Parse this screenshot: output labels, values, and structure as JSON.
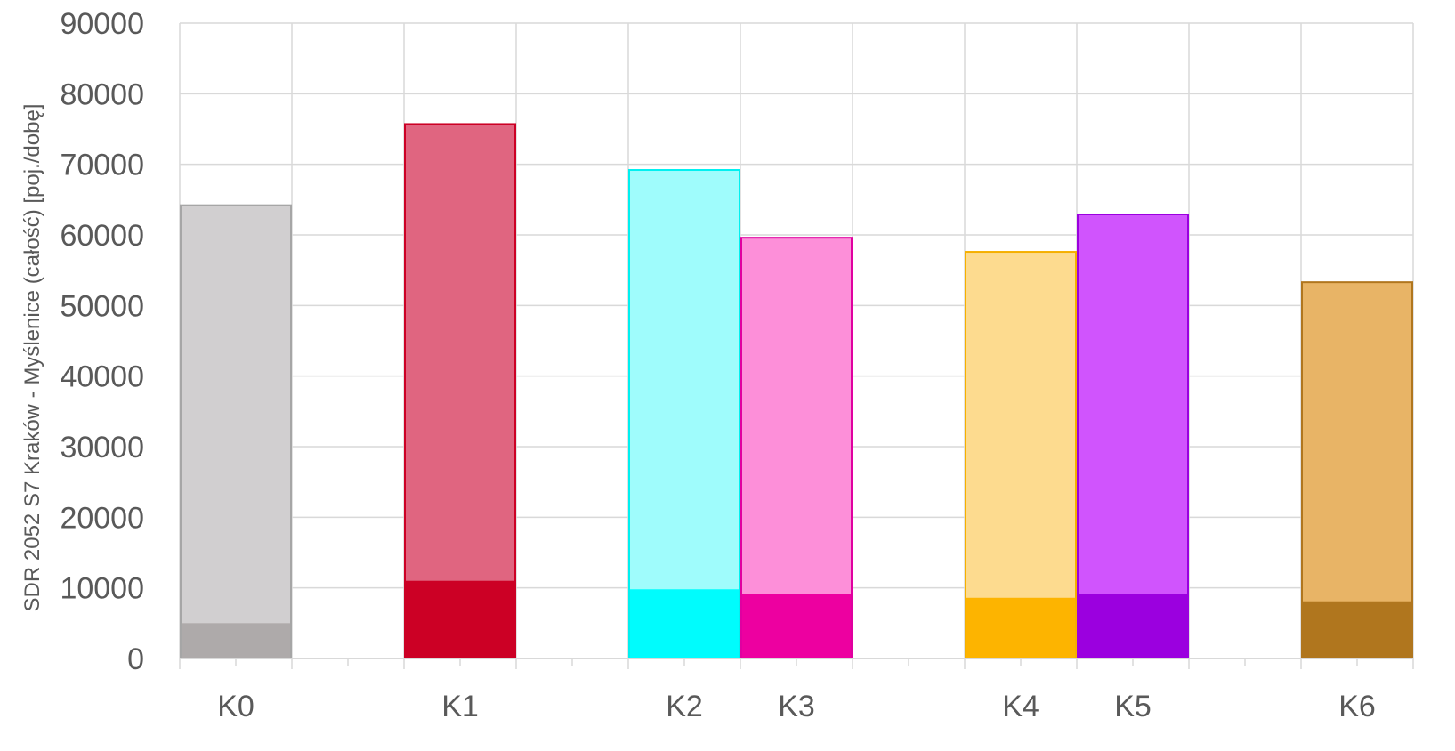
{
  "chart_data": {
    "type": "bar",
    "title": "",
    "xlabel": "",
    "ylabel": "SDR 2052 S7 Kraków - Myślenice (całość) [poj./dobę]",
    "ylim": [
      0,
      90000
    ],
    "yticks": [
      0,
      10000,
      20000,
      30000,
      40000,
      50000,
      60000,
      70000,
      80000,
      90000
    ],
    "grid": true,
    "legend": "none",
    "categories": [
      "K0",
      "K1",
      "K2",
      "K3",
      "K4",
      "K5",
      "K6"
    ],
    "series": [
      {
        "values": [
          5000,
          11000,
          9800,
          9200,
          8600,
          9200,
          8100
        ]
      },
      {
        "values": [
          64200,
          75700,
          69200,
          59600,
          57600,
          62900,
          53300
        ]
      }
    ],
    "colors": {
      "fill_light": [
        "#d1cfd0",
        "#e06580",
        "#9ffcfc",
        "#fd8fd9",
        "#fddb8f",
        "#d054fd",
        "#e8b466"
      ],
      "fill_dark": [
        "#aeaaaa",
        "#cc0025",
        "#00fcfd",
        "#ed00a0",
        "#fdb400",
        "#9b00df",
        "#b0761e"
      ],
      "border": [
        "#a6a6a6",
        "#cc0025",
        "#00f0f0",
        "#e000a0",
        "#f5b000",
        "#9b00df",
        "#b0761e"
      ],
      "grid": "#d9d9d9",
      "text": "#595959"
    }
  }
}
